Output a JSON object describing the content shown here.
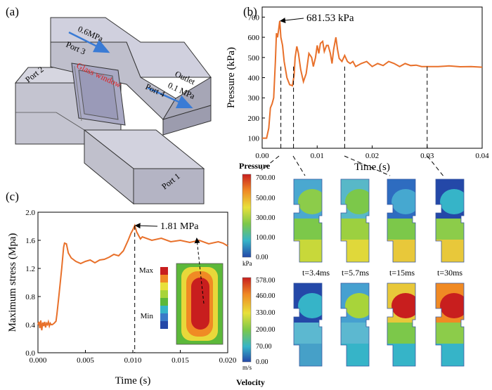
{
  "panels": {
    "a": {
      "label": "(a)",
      "inlet_pressure": "0.6MPa",
      "port3": "Port 3",
      "port2": "Port 2",
      "port1": "Port 1",
      "glass_window": "Glass window",
      "outlet": "Outlet",
      "outlet_pressure": "0.1 MPa",
      "port4": "Port 4",
      "colors": {
        "body": "#c9c9d6",
        "top": "#d8d8e4",
        "side": "#a9a9b8",
        "arrow": "#3a7bd5",
        "glass_label": "#e02020"
      }
    },
    "b": {
      "label": "(b)"
    },
    "c": {
      "label": "(c)"
    }
  },
  "chart_data": [
    {
      "type": "line",
      "panel": "b",
      "xlabel": "Time (s)",
      "ylabel": "Pressure (kPa)",
      "xlim": [
        0,
        0.04
      ],
      "ylim": [
        50,
        750
      ],
      "xticks": [
        "0.00",
        "0.01",
        "0.02",
        "0.03",
        "0.04"
      ],
      "xtick_values": [
        0,
        0.01,
        0.02,
        0.03,
        0.04
      ],
      "yticks": [
        "100",
        "200",
        "300",
        "400",
        "500",
        "600",
        "700"
      ],
      "ytick_values": [
        100,
        200,
        300,
        400,
        500,
        600,
        700
      ],
      "annotation": {
        "text": "681.53 kPa",
        "x": 0.0032,
        "y": 681.53
      },
      "marker_times": [
        0.0034,
        0.0057,
        0.015,
        0.03
      ],
      "color": "#e8702a",
      "series": [
        {
          "x": [
            0,
            0.0008,
            0.0012,
            0.0015,
            0.0018,
            0.0021,
            0.0024,
            0.0026,
            0.0028,
            0.003,
            0.0032,
            0.0034,
            0.0037,
            0.004,
            0.0045,
            0.005,
            0.0055,
            0.0058,
            0.006,
            0.0063,
            0.0066,
            0.007,
            0.0075,
            0.008,
            0.0085,
            0.009,
            0.0093,
            0.0097,
            0.01,
            0.0103,
            0.0106,
            0.011,
            0.0113,
            0.0117,
            0.012,
            0.0124,
            0.0127,
            0.013,
            0.0134,
            0.0137,
            0.014,
            0.0145,
            0.015,
            0.0155,
            0.016,
            0.0165,
            0.017,
            0.018,
            0.019,
            0.02,
            0.021,
            0.022,
            0.023,
            0.024,
            0.025,
            0.026,
            0.027,
            0.028,
            0.029,
            0.03,
            0.032,
            0.034,
            0.036,
            0.038,
            0.04
          ],
          "y": [
            100,
            100,
            150,
            250,
            270,
            300,
            480,
            620,
            600,
            640,
            681.53,
            600,
            560,
            480,
            400,
            365,
            360,
            410,
            500,
            555,
            520,
            440,
            380,
            420,
            520,
            500,
            455,
            500,
            560,
            520,
            570,
            580,
            530,
            560,
            560,
            520,
            470,
            540,
            600,
            540,
            495,
            480,
            510,
            480,
            470,
            480,
            455,
            470,
            480,
            455,
            470,
            460,
            480,
            470,
            455,
            470,
            460,
            462,
            455,
            455,
            455,
            458,
            454,
            455,
            452
          ]
        }
      ]
    },
    {
      "type": "line",
      "panel": "c",
      "xlabel": "Time (s)",
      "ylabel": "Maximum stress (Mpa)",
      "xlim": [
        0,
        0.02
      ],
      "ylim": [
        0,
        2.0
      ],
      "xticks": [
        "0.000",
        "0.005",
        "0.010",
        "0.015",
        "0.020"
      ],
      "xtick_values": [
        0,
        0.005,
        0.01,
        0.015,
        0.02
      ],
      "yticks": [
        "0.0",
        "0.4",
        "0.8",
        "1.2",
        "1.6",
        "2.0"
      ],
      "ytick_values": [
        0,
        0.4,
        0.8,
        1.2,
        1.6,
        2.0
      ],
      "annotation": {
        "text": "1.81 MPa",
        "x": 0.0102,
        "y": 1.81
      },
      "legend": {
        "max": "Max",
        "min": "Min"
      },
      "color": "#e8702a",
      "series": [
        {
          "x": [
            0,
            0.0001,
            0.0002,
            0.0003,
            0.0004,
            0.0005,
            0.0006,
            0.0007,
            0.0008,
            0.0009,
            0.001,
            0.0011,
            0.0012,
            0.0013,
            0.0014,
            0.0015,
            0.0017,
            0.0019,
            0.002,
            0.0022,
            0.0025,
            0.0027,
            0.0028,
            0.003,
            0.0032,
            0.0035,
            0.004,
            0.0045,
            0.005,
            0.0055,
            0.006,
            0.0065,
            0.007,
            0.0075,
            0.008,
            0.0085,
            0.009,
            0.0095,
            0.0098,
            0.01,
            0.0102,
            0.0104,
            0.0108,
            0.011,
            0.012,
            0.013,
            0.014,
            0.015,
            0.016,
            0.017,
            0.018,
            0.019,
            0.0195,
            0.02
          ],
          "y": [
            0.4,
            0.44,
            0.35,
            0.46,
            0.32,
            0.43,
            0.38,
            0.44,
            0.36,
            0.42,
            0.4,
            0.44,
            0.38,
            0.42,
            0.4,
            0.4,
            0.42,
            0.45,
            0.55,
            0.8,
            1.2,
            1.5,
            1.56,
            1.55,
            1.42,
            1.35,
            1.3,
            1.27,
            1.3,
            1.32,
            1.28,
            1.32,
            1.33,
            1.36,
            1.4,
            1.38,
            1.45,
            1.6,
            1.7,
            1.75,
            1.81,
            1.72,
            1.62,
            1.65,
            1.6,
            1.63,
            1.58,
            1.6,
            1.57,
            1.6,
            1.55,
            1.58,
            1.56,
            1.52
          ]
        }
      ]
    }
  ],
  "contours": {
    "pressure_title": "Pressure",
    "pressure_ticks": [
      "700.00",
      "500.00",
      "300.00",
      "100.00",
      "0.00"
    ],
    "pressure_unit": "kPa",
    "velocity_title": "Velocity",
    "velocity_ticks": [
      "578.00",
      "460.00",
      "330.00",
      "200.00",
      "70.00",
      "0.00"
    ],
    "velocity_unit": "m/s",
    "times": [
      "t=3.4ms",
      "t=5.7ms",
      "t=15ms",
      "t=30ms"
    ]
  }
}
